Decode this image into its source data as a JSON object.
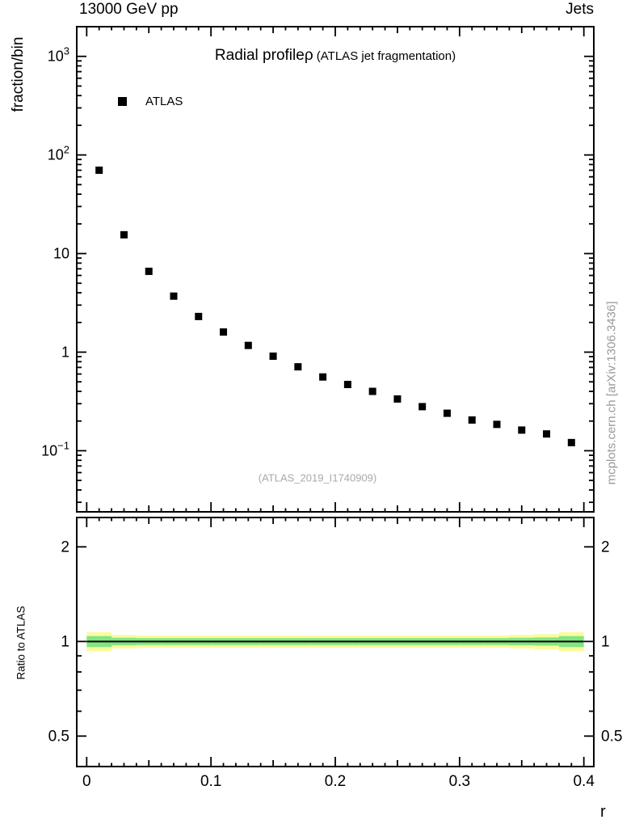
{
  "header": {
    "left": "13000 GeV pp",
    "right": "Jets"
  },
  "main_panel": {
    "title_main": "Radial profile",
    "title_rho": "ρ",
    "title_sub": " (ATLAS jet fragmentation)",
    "ylabel": "fraction/bin",
    "legend": {
      "label": "ATLAS",
      "marker": "filled-square",
      "marker_color": "#000000"
    },
    "watermark": "(ATLAS_2019_I1740909)"
  },
  "ratio_panel": {
    "ylabel": "Ratio to ATLAS"
  },
  "side_note": "mcplots.cern.ch [arXiv:1306.3436]",
  "xlabel": "r",
  "colors": {
    "axis": "#000000",
    "marker": "#000000",
    "band_outer": "#fbfb9b",
    "band_inner": "#82e682",
    "watermark": "#a9a9a9",
    "side_note": "#999999"
  },
  "chart_data": [
    {
      "type": "scatter",
      "panel": "main",
      "title": "Radial profileρ (ATLAS jet fragmentation)",
      "xlabel": "r",
      "ylabel": "fraction/bin",
      "xscale": "linear",
      "yscale": "log",
      "xlim": [
        -0.008,
        0.408
      ],
      "ylim": [
        0.024,
        2000
      ],
      "xticks": [
        0,
        0.1,
        0.2,
        0.3,
        0.4
      ],
      "yticks": [
        0.1,
        1,
        10,
        100,
        1000
      ],
      "grid": false,
      "legend_position": "top-left",
      "series": [
        {
          "name": "ATLAS",
          "marker": "filled-square",
          "color": "#000000",
          "x": [
            0.01,
            0.03,
            0.05,
            0.07,
            0.09,
            0.11,
            0.13,
            0.15,
            0.17,
            0.19,
            0.21,
            0.23,
            0.25,
            0.27,
            0.29,
            0.31,
            0.33,
            0.35,
            0.37,
            0.39
          ],
          "y": [
            70,
            15.5,
            6.6,
            3.7,
            2.3,
            1.6,
            1.17,
            0.91,
            0.71,
            0.56,
            0.47,
            0.4,
            0.335,
            0.28,
            0.24,
            0.205,
            0.185,
            0.162,
            0.148,
            0.121
          ]
        }
      ]
    },
    {
      "type": "area",
      "panel": "ratio",
      "ylabel": "Ratio to ATLAS",
      "yscale": "log",
      "ylim": [
        0.4,
        2.48
      ],
      "yticks": [
        0.5,
        1,
        2
      ],
      "yminorticks": [
        0.6,
        0.7,
        0.8,
        0.9
      ],
      "reference_line_y": 1.0,
      "band_outer_color": "#fbfb9b",
      "band_inner_color": "#82e682",
      "bin_edges": [
        0,
        0.02,
        0.04,
        0.06,
        0.08,
        0.1,
        0.12,
        0.14,
        0.16,
        0.18,
        0.2,
        0.22,
        0.24,
        0.26,
        0.28,
        0.3,
        0.32,
        0.34,
        0.36,
        0.38,
        0.4
      ],
      "band_outer_halfwidth": [
        0.07,
        0.05,
        0.045,
        0.045,
        0.045,
        0.045,
        0.045,
        0.045,
        0.045,
        0.045,
        0.045,
        0.045,
        0.045,
        0.045,
        0.045,
        0.045,
        0.045,
        0.05,
        0.055,
        0.07
      ],
      "band_inner_halfwidth": [
        0.04,
        0.028,
        0.025,
        0.025,
        0.025,
        0.025,
        0.025,
        0.025,
        0.025,
        0.025,
        0.025,
        0.025,
        0.025,
        0.025,
        0.025,
        0.025,
        0.025,
        0.028,
        0.03,
        0.04
      ]
    }
  ]
}
